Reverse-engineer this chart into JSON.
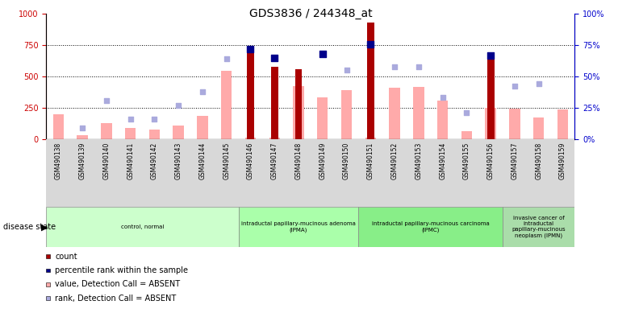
{
  "title": "GDS3836 / 244348_at",
  "samples": [
    "GSM490138",
    "GSM490139",
    "GSM490140",
    "GSM490141",
    "GSM490142",
    "GSM490143",
    "GSM490144",
    "GSM490145",
    "GSM490146",
    "GSM490147",
    "GSM490148",
    "GSM490149",
    "GSM490150",
    "GSM490151",
    "GSM490152",
    "GSM490153",
    "GSM490154",
    "GSM490155",
    "GSM490156",
    "GSM490157",
    "GSM490158",
    "GSM490159"
  ],
  "count_values": [
    0,
    0,
    0,
    0,
    0,
    0,
    0,
    0,
    700,
    580,
    560,
    0,
    0,
    930,
    0,
    0,
    0,
    0,
    640,
    0,
    0,
    0
  ],
  "rank_pct": [
    null,
    null,
    null,
    null,
    null,
    null,
    null,
    null,
    72,
    65,
    null,
    68,
    null,
    76,
    null,
    null,
    null,
    null,
    67,
    null,
    null,
    null
  ],
  "value_absent": [
    200,
    30,
    130,
    90,
    75,
    110,
    185,
    545,
    10,
    10,
    420,
    330,
    390,
    10,
    410,
    415,
    310,
    60,
    250,
    245,
    170,
    235
  ],
  "rank_absent_pct": [
    null,
    9,
    31,
    16,
    16,
    27,
    38,
    64,
    null,
    null,
    null,
    null,
    55,
    null,
    58,
    58,
    33,
    21,
    null,
    42,
    44,
    null
  ],
  "disease_groups": [
    {
      "label": "control, normal",
      "start": 0,
      "end": 7,
      "color": "#ccffcc"
    },
    {
      "label": "intraductal papillary-mucinous adenoma\n(IPMA)",
      "start": 8,
      "end": 12,
      "color": "#aaffaa"
    },
    {
      "label": "intraductal papillary-mucinous carcinoma\n(IPMC)",
      "start": 13,
      "end": 18,
      "color": "#88ee88"
    },
    {
      "label": "invasive cancer of\nintraductal\npapillary-mucinous\nneoplasm (IPMN)",
      "start": 19,
      "end": 21,
      "color": "#aaddaa"
    }
  ],
  "ylim_left": [
    0,
    1000
  ],
  "ylim_right": [
    0,
    100
  ],
  "yticks_left": [
    0,
    250,
    500,
    750,
    1000
  ],
  "yticks_right": [
    0,
    25,
    50,
    75,
    100
  ],
  "bar_color_count": "#aa0000",
  "bar_color_value_absent": "#ffaaaa",
  "dot_color_rank": "#00008b",
  "dot_color_rank_absent": "#aaaadd",
  "left_axis_color": "#cc0000",
  "right_axis_color": "#0000cc",
  "legend_items": [
    {
      "color": "#aa0000",
      "label": "count",
      "type": "rect"
    },
    {
      "color": "#00008b",
      "label": "percentile rank within the sample",
      "type": "rect"
    },
    {
      "color": "#ffaaaa",
      "label": "value, Detection Call = ABSENT",
      "type": "rect"
    },
    {
      "color": "#aaaadd",
      "label": "rank, Detection Call = ABSENT",
      "type": "rect"
    }
  ]
}
